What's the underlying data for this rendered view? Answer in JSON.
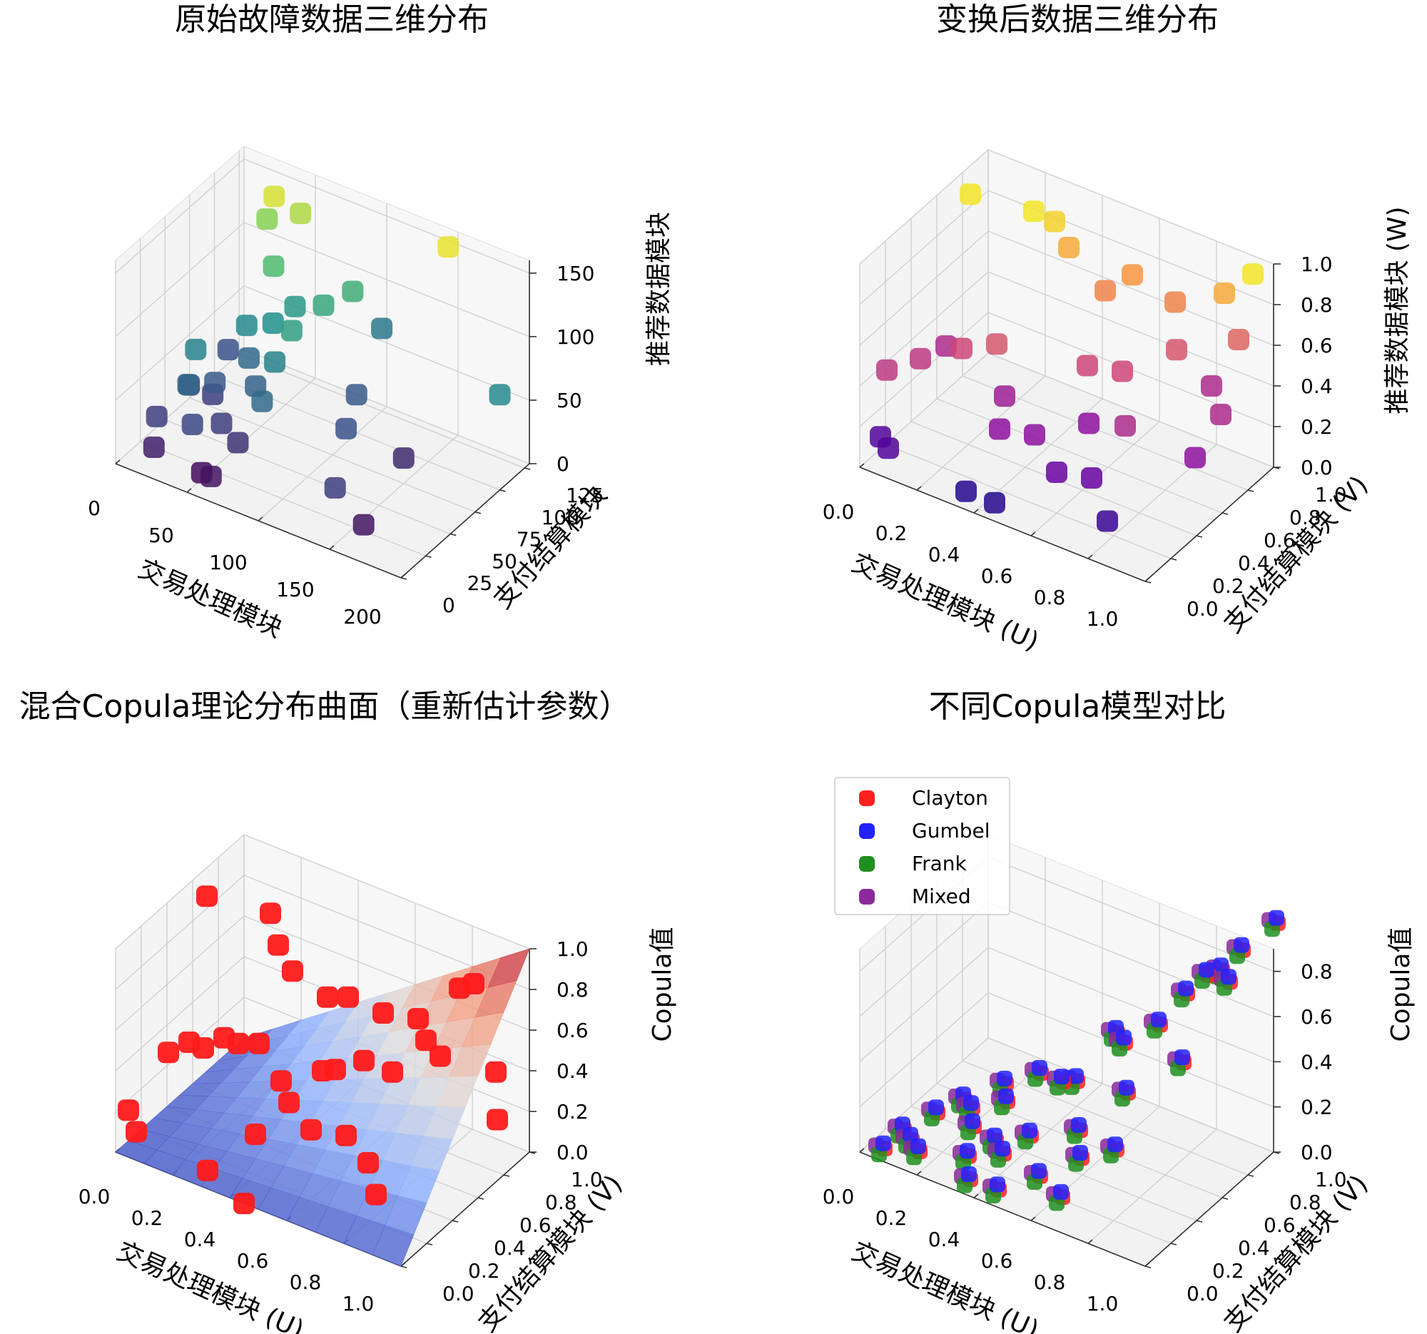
{
  "chart_data": [
    {
      "type": "scatter3d",
      "title": "原始故障数据三维分布",
      "xlabel": "交易处理模块",
      "ylabel": "支付结算模块",
      "zlabel": "推荐数据模块",
      "x_ticks": [
        "0",
        "50",
        "100",
        "150",
        "200"
      ],
      "y_ticks": [
        "0",
        "25",
        "50",
        "75",
        "100",
        "125"
      ],
      "z_ticks": [
        "0",
        "50",
        "100",
        "150"
      ],
      "xlim": [
        0,
        200
      ],
      "ylim": [
        0,
        130
      ],
      "zlim": [
        0,
        160
      ],
      "colormap": "viridis",
      "points": [
        {
          "x": 10,
          "y": 60,
          "z": 25
        },
        {
          "x": 20,
          "y": 85,
          "z": 40
        },
        {
          "x": 30,
          "y": 55,
          "z": 30
        },
        {
          "x": 15,
          "y": 20,
          "z": 30
        },
        {
          "x": 25,
          "y": 45,
          "z": 70
        },
        {
          "x": 40,
          "y": 75,
          "z": 75
        },
        {
          "x": 35,
          "y": 50,
          "z": 45
        },
        {
          "x": 50,
          "y": 35,
          "z": 30
        },
        {
          "x": 45,
          "y": 95,
          "z": 110
        },
        {
          "x": 30,
          "y": 110,
          "z": 130
        },
        {
          "x": 55,
          "y": 80,
          "z": 80
        },
        {
          "x": 60,
          "y": 95,
          "z": 85
        },
        {
          "x": 70,
          "y": 60,
          "z": 70
        },
        {
          "x": 80,
          "y": 95,
          "z": 95
        },
        {
          "x": 90,
          "y": 110,
          "z": 100
        },
        {
          "x": 100,
          "y": 125,
          "z": 65
        },
        {
          "x": 60,
          "y": 55,
          "z": 50
        },
        {
          "x": 75,
          "y": 40,
          "z": 55
        },
        {
          "x": 110,
          "y": 85,
          "z": 45
        },
        {
          "x": 40,
          "y": 20,
          "z": 35
        },
        {
          "x": 20,
          "y": 10,
          "z": 15
        },
        {
          "x": 60,
          "y": 10,
          "z": 10
        },
        {
          "x": 50,
          "y": 15,
          "z": 5
        },
        {
          "x": 140,
          "y": 20,
          "z": 30
        },
        {
          "x": 120,
          "y": 60,
          "z": 40
        },
        {
          "x": 150,
          "y": 75,
          "z": 20
        },
        {
          "x": 160,
          "y": 20,
          "z": 10
        },
        {
          "x": 35,
          "y": 110,
          "z": 150
        },
        {
          "x": 50,
          "y": 115,
          "z": 140
        },
        {
          "x": 150,
          "y": 120,
          "z": 155
        },
        {
          "x": 200,
          "y": 100,
          "z": 75
        },
        {
          "x": 45,
          "y": 70,
          "z": 55
        },
        {
          "x": 65,
          "y": 30,
          "z": 25
        },
        {
          "x": 30,
          "y": 30,
          "z": 55
        },
        {
          "x": 75,
          "y": 70,
          "z": 90
        }
      ]
    },
    {
      "type": "scatter3d",
      "title": "变换后数据三维分布",
      "xlabel": "交易处理模块 (U)",
      "ylabel": "支付结算模块 (V)",
      "zlabel": "推荐数据模块 (W)",
      "x_ticks": [
        "0.0",
        "0.2",
        "0.4",
        "0.6",
        "0.8",
        "1.0"
      ],
      "y_ticks": [
        "0.0",
        "0.2",
        "0.4",
        "0.6",
        "0.8",
        "1.0"
      ],
      "z_ticks": [
        "0.0",
        "0.2",
        "0.4",
        "0.6",
        "0.8",
        "1.0"
      ],
      "xlim": [
        0,
        1
      ],
      "ylim": [
        0,
        1
      ],
      "zlim": [
        0,
        1
      ],
      "colormap": "plasma",
      "points": [
        {
          "x": 0.05,
          "y": 0.75,
          "z": 0.95
        },
        {
          "x": 0.25,
          "y": 0.8,
          "z": 0.95
        },
        {
          "x": 0.3,
          "y": 0.85,
          "z": 0.9
        },
        {
          "x": 0.35,
          "y": 0.85,
          "z": 0.8
        },
        {
          "x": 0.5,
          "y": 0.8,
          "z": 0.7
        },
        {
          "x": 0.55,
          "y": 0.9,
          "z": 0.75
        },
        {
          "x": 0.7,
          "y": 0.9,
          "z": 0.7
        },
        {
          "x": 0.85,
          "y": 0.95,
          "z": 0.8
        },
        {
          "x": 0.95,
          "y": 0.95,
          "z": 0.95
        },
        {
          "x": 0.9,
          "y": 0.95,
          "z": 0.6
        },
        {
          "x": 0.75,
          "y": 0.8,
          "z": 0.55
        },
        {
          "x": 0.05,
          "y": 0.1,
          "z": 0.45
        },
        {
          "x": 0.1,
          "y": 0.25,
          "z": 0.45
        },
        {
          "x": 0.2,
          "y": 0.35,
          "z": 0.5
        },
        {
          "x": 0.3,
          "y": 0.4,
          "z": 0.55
        },
        {
          "x": 0.1,
          "y": 0.45,
          "z": 0.4
        },
        {
          "x": 0.35,
          "y": 0.35,
          "z": 0.35
        },
        {
          "x": 0.4,
          "y": 0.2,
          "z": 0.3
        },
        {
          "x": 0.55,
          "y": 0.55,
          "z": 0.5
        },
        {
          "x": 0.65,
          "y": 0.6,
          "z": 0.5
        },
        {
          "x": 0.85,
          "y": 0.85,
          "z": 0.4
        },
        {
          "x": 0.95,
          "y": 0.7,
          "z": 0.4
        },
        {
          "x": 0.75,
          "y": 0.4,
          "z": 0.4
        },
        {
          "x": 0.05,
          "y": 0.05,
          "z": 0.15
        },
        {
          "x": 0.1,
          "y": 0.0,
          "z": 0.15
        },
        {
          "x": 0.35,
          "y": 0.05,
          "z": 0.05
        },
        {
          "x": 0.45,
          "y": 0.05,
          "z": 0.05
        },
        {
          "x": 0.5,
          "y": 0.25,
          "z": 0.3
        },
        {
          "x": 0.6,
          "y": 0.2,
          "z": 0.2
        },
        {
          "x": 0.7,
          "y": 0.25,
          "z": 0.2
        },
        {
          "x": 0.8,
          "y": 0.15,
          "z": 0.1
        },
        {
          "x": 0.6,
          "y": 0.45,
          "z": 0.3
        },
        {
          "x": 0.95,
          "y": 0.5,
          "z": 0.3
        }
      ]
    },
    {
      "type": "surface3d",
      "title": "混合Copula理论分布曲面（重新估计参数）",
      "xlabel": "交易处理模块 (U)",
      "ylabel": "支付结算模块 (V)",
      "zlabel": "Copula值",
      "x_ticks": [
        "0.0",
        "0.2",
        "0.4",
        "0.6",
        "0.8",
        "1.0"
      ],
      "y_ticks": [
        "0.0",
        "0.2",
        "0.4",
        "0.6",
        "0.8",
        "1.0"
      ],
      "z_ticks": [
        "0.0",
        "0.2",
        "0.4",
        "0.6",
        "0.8",
        "1.0"
      ],
      "xlim": [
        0,
        1
      ],
      "ylim": [
        0,
        1
      ],
      "zlim": [
        0,
        1
      ],
      "colormap": "coolwarm",
      "surface": "C(u,v) ≈ u·v",
      "point_color": "#ff1a1a",
      "points": [
        {
          "x": 0.05,
          "y": 0.6,
          "z": 0.95
        },
        {
          "x": 0.25,
          "y": 0.65,
          "z": 0.95
        },
        {
          "x": 0.3,
          "y": 0.6,
          "z": 0.85
        },
        {
          "x": 0.35,
          "y": 0.6,
          "z": 0.75
        },
        {
          "x": 0.45,
          "y": 0.65,
          "z": 0.65
        },
        {
          "x": 0.5,
          "y": 0.7,
          "z": 0.65
        },
        {
          "x": 0.6,
          "y": 0.75,
          "z": 0.6
        },
        {
          "x": 0.7,
          "y": 0.8,
          "z": 0.6
        },
        {
          "x": 0.8,
          "y": 0.9,
          "z": 0.75
        },
        {
          "x": 0.85,
          "y": 0.9,
          "z": 0.8
        },
        {
          "x": 0.75,
          "y": 0.75,
          "z": 0.55
        },
        {
          "x": 0.8,
          "y": 0.75,
          "z": 0.5
        },
        {
          "x": 0.95,
          "y": 0.85,
          "z": 0.45
        },
        {
          "x": 0.05,
          "y": 0.3,
          "z": 0.35
        },
        {
          "x": 0.1,
          "y": 0.35,
          "z": 0.4
        },
        {
          "x": 0.15,
          "y": 0.35,
          "z": 0.4
        },
        {
          "x": 0.2,
          "y": 0.4,
          "z": 0.45
        },
        {
          "x": 0.25,
          "y": 0.4,
          "z": 0.45
        },
        {
          "x": 0.3,
          "y": 0.45,
          "z": 0.45
        },
        {
          "x": 0.4,
          "y": 0.4,
          "z": 0.35
        },
        {
          "x": 0.45,
          "y": 0.35,
          "z": 0.3
        },
        {
          "x": 0.5,
          "y": 0.5,
          "z": 0.4
        },
        {
          "x": 0.6,
          "y": 0.6,
          "z": 0.45
        },
        {
          "x": 0.7,
          "y": 0.6,
          "z": 0.45
        },
        {
          "x": 0.0,
          "y": 0.1,
          "z": 0.15
        },
        {
          "x": 0.05,
          "y": 0.05,
          "z": 0.1
        },
        {
          "x": 0.3,
          "y": 0.05,
          "z": 0.05
        },
        {
          "x": 0.45,
          "y": 0.0,
          "z": 0.0
        },
        {
          "x": 0.4,
          "y": 0.2,
          "z": 0.2
        },
        {
          "x": 0.55,
          "y": 0.3,
          "z": 0.25
        },
        {
          "x": 0.65,
          "y": 0.35,
          "z": 0.25
        },
        {
          "x": 0.75,
          "y": 0.3,
          "z": 0.2
        },
        {
          "x": 0.8,
          "y": 0.25,
          "z": 0.1
        },
        {
          "x": 1.0,
          "y": 0.75,
          "z": 0.3
        },
        {
          "x": 0.5,
          "y": 0.6,
          "z": 0.35
        }
      ]
    },
    {
      "type": "scatter3d",
      "title": "不同Copula模型对比",
      "xlabel": "交易处理模块 (U)",
      "ylabel": "支付结算模块 (V)",
      "zlabel": "Copula值",
      "x_ticks": [
        "0.0",
        "0.2",
        "0.4",
        "0.6",
        "0.8",
        "1.0"
      ],
      "y_ticks": [
        "0.0",
        "0.2",
        "0.4",
        "0.6",
        "0.8",
        "1.0"
      ],
      "z_ticks": [
        "0.0",
        "0.2",
        "0.4",
        "0.6",
        "0.8"
      ],
      "xlim": [
        0,
        1
      ],
      "ylim": [
        0,
        1
      ],
      "zlim": [
        0,
        0.9
      ],
      "legend": {
        "position": "top-left",
        "entries": [
          {
            "name": "Clayton",
            "color": "#ff2020"
          },
          {
            "name": "Gumbel",
            "color": "#2222ff"
          },
          {
            "name": "Frank",
            "color": "#1f8f1f"
          },
          {
            "name": "Mixed",
            "color": "#8a2a9a"
          }
        ]
      },
      "uv_points": [
        {
          "x": 1.0,
          "y": 1.0
        },
        {
          "x": 0.85,
          "y": 0.9
        },
        {
          "x": 0.9,
          "y": 0.95
        },
        {
          "x": 0.8,
          "y": 0.9
        },
        {
          "x": 0.75,
          "y": 0.85
        },
        {
          "x": 0.9,
          "y": 0.85
        },
        {
          "x": 0.7,
          "y": 0.75
        },
        {
          "x": 0.6,
          "y": 0.7
        },
        {
          "x": 0.55,
          "y": 0.75
        },
        {
          "x": 0.5,
          "y": 0.55
        },
        {
          "x": 0.45,
          "y": 0.55
        },
        {
          "x": 0.35,
          "y": 0.6
        },
        {
          "x": 0.25,
          "y": 0.55
        },
        {
          "x": 0.3,
          "y": 0.45
        },
        {
          "x": 0.2,
          "y": 0.4
        },
        {
          "x": 0.1,
          "y": 0.35
        },
        {
          "x": 0.15,
          "y": 0.45
        },
        {
          "x": 0.05,
          "y": 0.2
        },
        {
          "x": 0.1,
          "y": 0.15
        },
        {
          "x": 0.05,
          "y": 0.05
        },
        {
          "x": 0.15,
          "y": 0.1
        },
        {
          "x": 0.3,
          "y": 0.15
        },
        {
          "x": 0.35,
          "y": 0.05
        },
        {
          "x": 0.45,
          "y": 0.05
        },
        {
          "x": 0.55,
          "y": 0.15
        },
        {
          "x": 0.65,
          "y": 0.25
        },
        {
          "x": 0.75,
          "y": 0.3
        },
        {
          "x": 0.6,
          "y": 0.35
        },
        {
          "x": 0.45,
          "y": 0.3
        },
        {
          "x": 0.35,
          "y": 0.25
        },
        {
          "x": 0.7,
          "y": 0.5
        },
        {
          "x": 0.85,
          "y": 0.6
        },
        {
          "x": 0.4,
          "y": 0.2
        },
        {
          "x": 0.25,
          "y": 0.3
        },
        {
          "x": 0.65,
          "y": 0.1
        }
      ]
    }
  ]
}
